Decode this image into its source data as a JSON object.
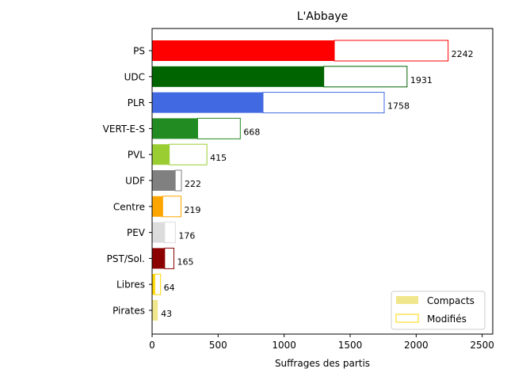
{
  "chart_data": {
    "type": "bar",
    "orientation": "horizontal",
    "stacked": true,
    "title": "L'Abbaye",
    "xlabel": "Suffrages des partis",
    "ylabel": "",
    "xlim": [
      0,
      2580
    ],
    "xticks": [
      0,
      500,
      1000,
      1500,
      2000,
      2500
    ],
    "grid": false,
    "legend_position": "bottom-right",
    "categories": [
      "PS",
      "UDC",
      "PLR",
      "VERT-E-S",
      "PVL",
      "UDF",
      "Centre",
      "PEV",
      "PST/Sol.",
      "Libres",
      "Pirates"
    ],
    "colors": [
      "#ff0000",
      "#006400",
      "#4169e1",
      "#228b22",
      "#9acd32",
      "#808080",
      "#ffa500",
      "#dcdcdc",
      "#8b0000",
      "#ffd700",
      "#f0e68c"
    ],
    "series": [
      {
        "name": "Compacts",
        "values": [
          1380,
          1300,
          840,
          345,
          130,
          175,
          80,
          95,
          95,
          20,
          43
        ]
      },
      {
        "name": "Modifiés",
        "values": [
          862,
          631,
          918,
          323,
          285,
          47,
          139,
          81,
          70,
          44,
          0
        ]
      }
    ],
    "totals": [
      2242,
      1931,
      1758,
      668,
      415,
      222,
      219,
      176,
      165,
      64,
      43
    ],
    "legend": {
      "compacts_color": "#f0e68c",
      "modifies_color": "#ffd700"
    }
  }
}
